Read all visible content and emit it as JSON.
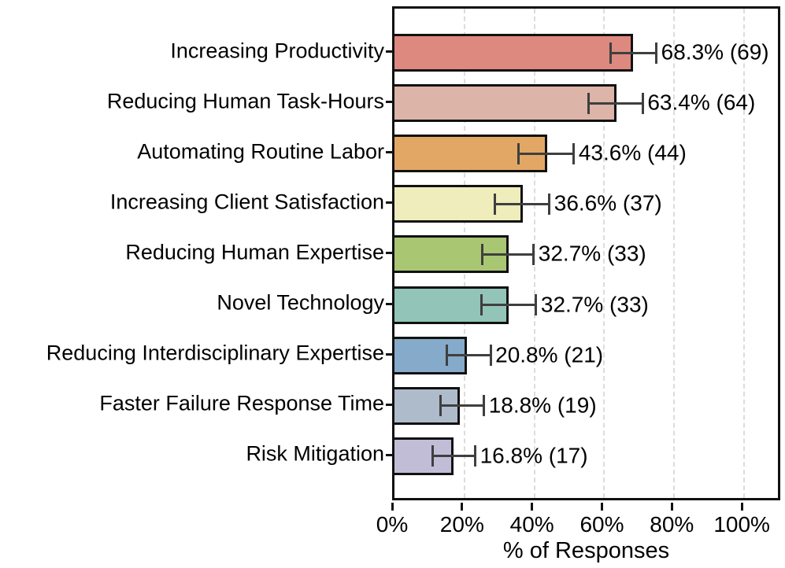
{
  "chart_data": {
    "type": "bar",
    "orientation": "horizontal",
    "title": "",
    "xlabel": "% of Responses",
    "ylabel": "",
    "xlim": [
      0,
      111
    ],
    "x_tick_values": [
      0,
      20,
      40,
      60,
      80,
      100
    ],
    "x_tick_labels": [
      "0%",
      "20%",
      "40%",
      "60%",
      "80%",
      "100%"
    ],
    "grid": "vertical dashed gridlines at x ticks",
    "legend": "none",
    "categories": [
      "Increasing Productivity",
      "Reducing Human Task-Hours",
      "Automating Routine Labor",
      "Increasing Client Satisfaction",
      "Reducing Human Expertise",
      "Novel Technology",
      "Reducing Interdisciplinary Expertise",
      "Faster Failure Response Time",
      "Risk Mitigation"
    ],
    "values": [
      68.3,
      63.4,
      43.6,
      36.6,
      32.7,
      32.7,
      20.8,
      18.8,
      16.8
    ],
    "counts": [
      69,
      64,
      44,
      37,
      33,
      33,
      21,
      19,
      17
    ],
    "value_labels": [
      "68.3% (69)",
      "63.4% (64)",
      "43.6% (44)",
      "36.6% (37)",
      "32.7% (33)",
      "32.7% (33)",
      "20.8% (21)",
      "18.8% (19)",
      "16.8% (17)"
    ],
    "error_low": [
      61.7,
      55.6,
      35.5,
      28.8,
      25.0,
      24.9,
      14.9,
      13.2,
      11.0
    ],
    "error_high": [
      74.9,
      71.0,
      51.3,
      44.3,
      39.8,
      40.5,
      27.5,
      25.6,
      23.1
    ],
    "bar_colors": [
      "#dd897f",
      "#ddb4a8",
      "#e3a765",
      "#eeedbb",
      "#a9c672",
      "#92c5b7",
      "#86aac9",
      "#aebbcb",
      "#c2bdd7"
    ],
    "bar_edge_color": "#111111",
    "error_bar_color": "#3f3f3f",
    "gridline_color": "#dcdcdc",
    "text_color": "#000000"
  }
}
